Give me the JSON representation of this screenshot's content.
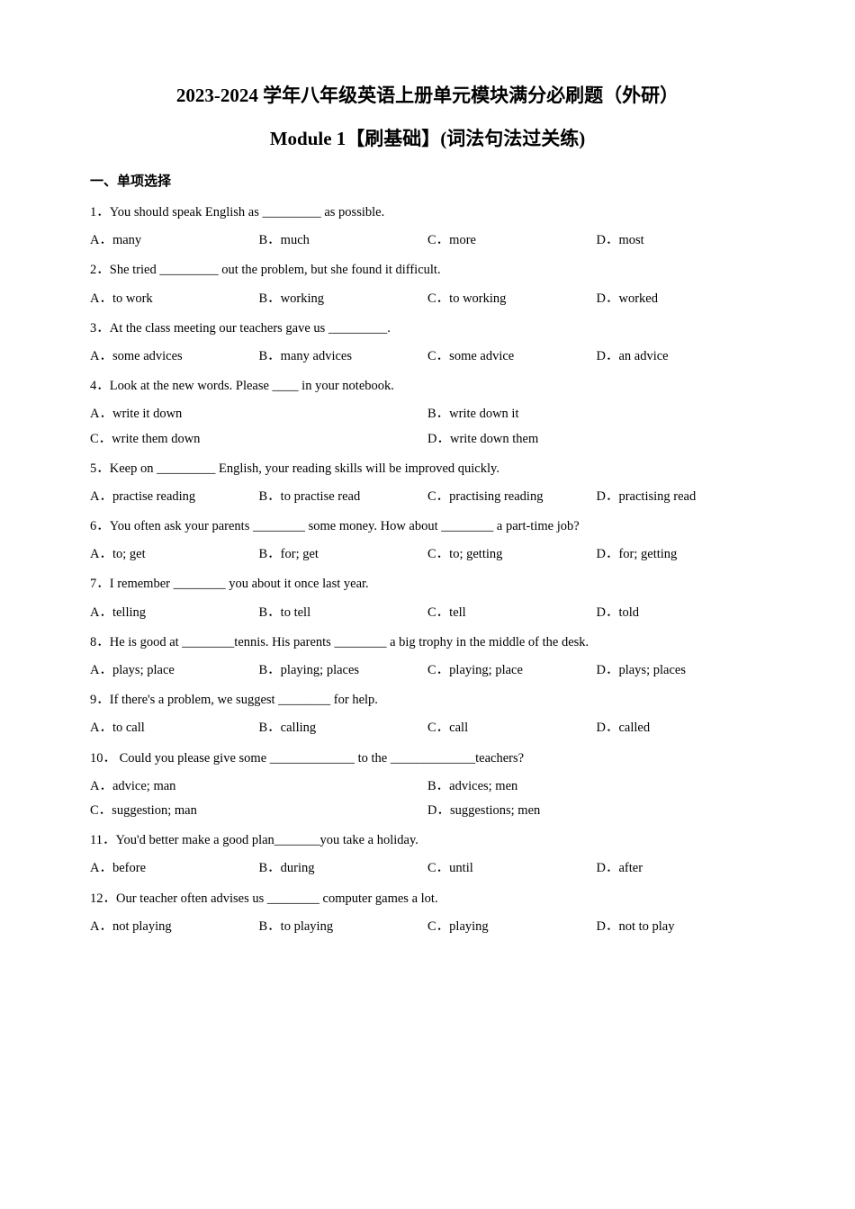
{
  "title_main": "2023-2024 学年八年级英语上册单元模块满分必刷题（外研）",
  "title_sub": "Module 1【刷基础】(词法句法过关练)",
  "section_header": "一、单项选择",
  "questions": [
    {
      "num": "1",
      "text": "1．You should speak English as _________ as possible.",
      "choices": [
        "A．many",
        "B．much",
        "C．more",
        "D．most"
      ],
      "layout": "w4"
    },
    {
      "num": "2",
      "text": "2．She tried _________ out the problem, but she found it difficult.",
      "choices": [
        "A．to work",
        "B．working",
        "C．to working",
        "D．worked"
      ],
      "layout": "w4"
    },
    {
      "num": "3",
      "text": "3．At the class meeting our teachers gave us _________.",
      "choices": [
        "A．some advices",
        "B．many advices",
        "C．some advice",
        "D．an advice"
      ],
      "layout": "w4"
    },
    {
      "num": "4",
      "text": "4．Look at the new words. Please ____ in your notebook.",
      "choices": [
        "A．write it down",
        "B．write down it",
        "C．write them down",
        "D．write down them"
      ],
      "layout": "w2"
    },
    {
      "num": "5",
      "text": "5．Keep on _________ English, your reading skills will be improved quickly.",
      "choices": [
        "A．practise reading",
        "B．to practise read",
        "C．practising reading",
        "D．practising read"
      ],
      "layout": "w4"
    },
    {
      "num": "6",
      "text": "6．You often ask your parents ________ some money. How about ________ a part-time job?",
      "choices": [
        "A．to; get",
        "B．for; get",
        "C．to; getting",
        "D．for; getting"
      ],
      "layout": "w4"
    },
    {
      "num": "7",
      "text": "7．I remember ________ you about it once last year.",
      "choices": [
        "A．telling",
        "B．to tell",
        "C．tell",
        "D．told"
      ],
      "layout": "w4"
    },
    {
      "num": "8",
      "text": "8．He is good at ________tennis. His parents ________ a big trophy in the middle of the desk.",
      "choices": [
        "A．plays; place",
        "B．playing; places",
        "C．playing; place",
        "D．plays; places"
      ],
      "layout": "w4"
    },
    {
      "num": "9",
      "text": "9．If there's a problem, we suggest ________ for help.",
      "choices": [
        "A．to call",
        "B．calling",
        "C．call",
        "D．called"
      ],
      "layout": "w4"
    },
    {
      "num": "10",
      "text": "10． Could you please give some _____________ to the _____________teachers?",
      "choices": [
        "A．advice; man",
        "B．advices; men",
        "C．suggestion; man",
        "D．suggestions; men"
      ],
      "layout": "w2"
    },
    {
      "num": "11",
      "text": "11．You'd better make a good plan_______you take a holiday.",
      "choices": [
        "A．before",
        "B．during",
        "C．until",
        "D．after"
      ],
      "layout": "w4"
    },
    {
      "num": "12",
      "text": "12．Our teacher often advises us ________ computer games a lot.",
      "choices": [
        "A．not playing",
        "B．to playing",
        "C．playing",
        "D．not to play"
      ],
      "layout": "w4"
    }
  ]
}
